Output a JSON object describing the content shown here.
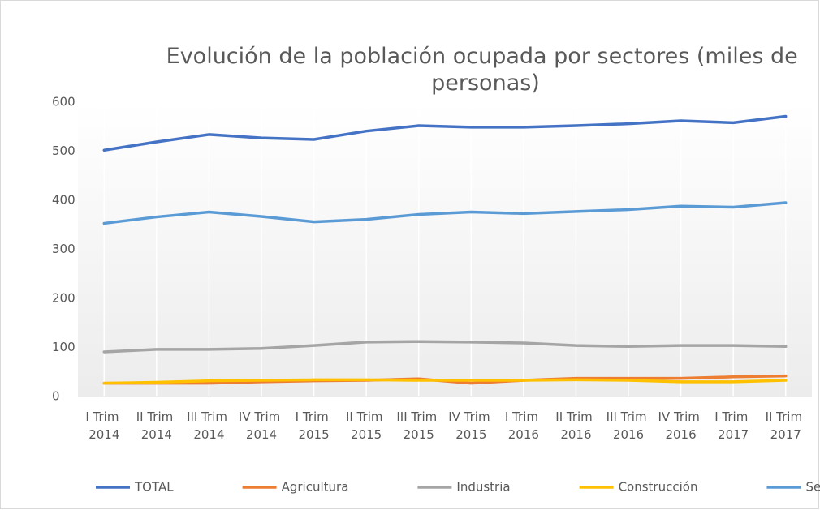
{
  "chart_data": {
    "type": "line",
    "title": "Evolución de la población ocupada por sectores (miles de personas)",
    "categories": [
      "I Trim 2014",
      "II Trim 2014",
      "III Trim 2014",
      "IV Trim 2014",
      "I Trim 2015",
      "II Trim 2015",
      "III Trim 2015",
      "IV Trim 2015",
      "I Trim 2016",
      "II Trim 2016",
      "III Trim 2016",
      "IV Trim 2016",
      "I Trim 2017",
      "II Trim 2017"
    ],
    "series": [
      {
        "name": "TOTAL",
        "color": "#4472c4",
        "values": [
          502,
          519,
          534,
          527,
          524,
          541,
          552,
          549,
          549,
          552,
          556,
          562,
          558,
          571
        ]
      },
      {
        "name": "Agricultura",
        "color": "#ed7d31",
        "values": [
          27,
          27,
          27,
          30,
          32,
          33,
          36,
          27,
          33,
          37,
          37,
          37,
          40,
          42
        ]
      },
      {
        "name": "Industria",
        "color": "#a5a5a5",
        "values": [
          91,
          96,
          96,
          98,
          104,
          111,
          112,
          111,
          109,
          104,
          102,
          104,
          104,
          102
        ]
      },
      {
        "name": "Construcción",
        "color": "#ffc000",
        "values": [
          27,
          29,
          32,
          33,
          34,
          34,
          33,
          33,
          33,
          34,
          33,
          30,
          30,
          33
        ]
      },
      {
        "name": "Servicios",
        "color": "#5b9bd5",
        "values": [
          353,
          366,
          376,
          367,
          356,
          361,
          371,
          376,
          373,
          377,
          381,
          388,
          386,
          395
        ]
      }
    ],
    "ylim": [
      0,
      600
    ],
    "yticks": [
      0,
      100,
      200,
      300,
      400,
      500,
      600
    ],
    "legend": "bottom"
  }
}
